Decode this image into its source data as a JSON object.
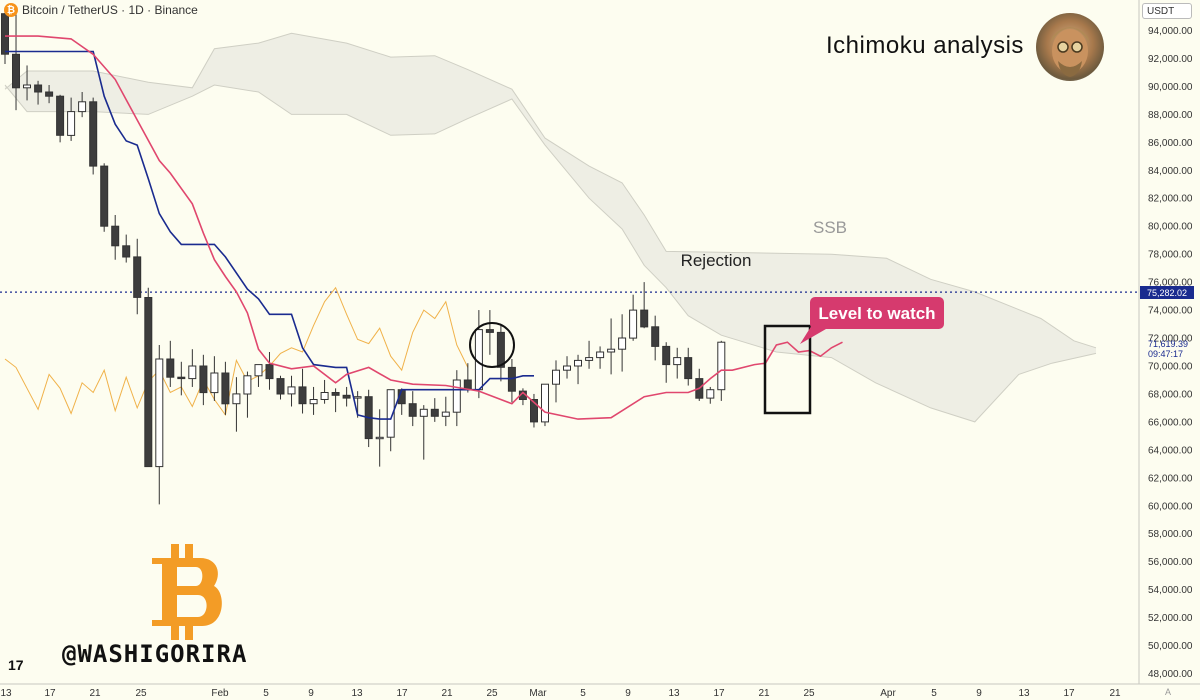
{
  "header": {
    "symbol": "Bitcoin / TetherUS · 1D · Binance",
    "currency": "USDT",
    "title": "Ichimoku analysis",
    "watermark": "@WASHIGORIRA",
    "tv_logo": "17",
    "auto_label": "A"
  },
  "colors": {
    "background": "#fdfdf0",
    "candle_up": "#ffffff",
    "candle_down": "#3d3d3d",
    "tenkan": "#e0476e",
    "kijun": "#1a2b8f",
    "chikou": "#f0b24a",
    "cloud": "#eeeee4",
    "level_badge": "#d63a6e",
    "bitcoin": "#f39c26"
  },
  "chart_data": {
    "type": "candlestick",
    "indicator": "Ichimoku",
    "y_axis": {
      "min": 47000,
      "max": 95500,
      "ticks": [
        "94,000.00",
        "92,000.00",
        "90,000.00",
        "88,000.00",
        "86,000.00",
        "84,000.00",
        "82,000.00",
        "80,000.00",
        "78,000.00",
        "76,000.00",
        "74,000.00",
        "72,000.00",
        "70,000.00",
        "68,000.00",
        "66,000.00",
        "64,000.00",
        "62,000.00",
        "60,000.00",
        "58,000.00",
        "56,000.00",
        "54,000.00",
        "52,000.00",
        "50,000.00",
        "48,000.00"
      ],
      "tick_values": [
        94000,
        92000,
        90000,
        88000,
        86000,
        84000,
        82000,
        80000,
        78000,
        76000,
        74000,
        72000,
        70000,
        68000,
        66000,
        64000,
        62000,
        60000,
        58000,
        56000,
        54000,
        52000,
        50000,
        48000
      ]
    },
    "x_axis": {
      "labels": [
        "13",
        "17",
        "21",
        "25",
        "Feb",
        "5",
        "9",
        "13",
        "17",
        "21",
        "25",
        "Mar",
        "5",
        "9",
        "13",
        "17",
        "21",
        "25",
        "Apr",
        "5",
        "9",
        "13",
        "17",
        "21"
      ]
    },
    "price_labels": {
      "level": "75,282.02",
      "last": "71,619.39",
      "countdown": "09:47:17"
    },
    "level_line": 75282,
    "candles": [
      [
        95200,
        95600,
        91600,
        92300
      ],
      [
        92300,
        95400,
        88300,
        89900
      ],
      [
        89900,
        91500,
        89000,
        90100
      ],
      [
        90100,
        90400,
        88700,
        89600
      ],
      [
        89600,
        90100,
        88800,
        89300
      ],
      [
        89300,
        89400,
        86000,
        86500
      ],
      [
        86500,
        89200,
        86100,
        88200
      ],
      [
        88200,
        89600,
        87800,
        88900
      ],
      [
        88900,
        89200,
        83700,
        84300
      ],
      [
        84300,
        84500,
        79600,
        80000
      ],
      [
        80000,
        80800,
        77600,
        78600
      ],
      [
        78600,
        79400,
        77400,
        77800
      ],
      [
        77800,
        79100,
        73700,
        74900
      ],
      [
        74900,
        75600,
        63000,
        62800
      ],
      [
        62800,
        71500,
        60100,
        70500
      ],
      [
        70500,
        71800,
        68500,
        69200
      ],
      [
        69200,
        70300,
        67900,
        69100
      ],
      [
        69100,
        71200,
        68500,
        70000
      ],
      [
        70000,
        70800,
        67200,
        68100
      ],
      [
        68100,
        70700,
        67500,
        69500
      ],
      [
        69500,
        70300,
        66500,
        67300
      ],
      [
        67300,
        69200,
        65300,
        68000
      ],
      [
        68000,
        69600,
        66300,
        69300
      ],
      [
        69300,
        70100,
        68500,
        70100
      ],
      [
        70100,
        71000,
        68300,
        69100
      ],
      [
        69100,
        69300,
        67600,
        68000
      ],
      [
        68000,
        69300,
        67100,
        68500
      ],
      [
        68500,
        69800,
        66600,
        67300
      ],
      [
        67300,
        68500,
        66500,
        67600
      ],
      [
        67600,
        69000,
        67300,
        68100
      ],
      [
        68100,
        68400,
        66700,
        67900
      ],
      [
        67900,
        68500,
        67100,
        67700
      ],
      [
        67700,
        68200,
        66300,
        67800
      ],
      [
        67800,
        68300,
        64200,
        64800
      ],
      [
        64800,
        66900,
        62800,
        64900
      ],
      [
        64900,
        68300,
        63900,
        68300
      ],
      [
        68300,
        68400,
        66500,
        67300
      ],
      [
        67300,
        68200,
        65700,
        66400
      ],
      [
        66400,
        67200,
        63300,
        66900
      ],
      [
        66900,
        67700,
        66000,
        66400
      ],
      [
        66400,
        67800,
        65700,
        66700
      ],
      [
        66700,
        69700,
        65700,
        69000
      ],
      [
        69000,
        70200,
        68100,
        68300
      ],
      [
        68300,
        74000,
        67700,
        72600
      ],
      [
        72600,
        74000,
        70800,
        72400
      ],
      [
        72400,
        72900,
        68900,
        69900
      ],
      [
        69900,
        70500,
        67400,
        68200
      ],
      [
        68200,
        68400,
        67200,
        67600
      ],
      [
        67600,
        68000,
        65600,
        66000
      ],
      [
        66000,
        68600,
        65700,
        68700
      ],
      [
        68700,
        70400,
        67400,
        69700
      ],
      [
        69700,
        70700,
        69100,
        70000
      ],
      [
        70000,
        70800,
        68700,
        70400
      ],
      [
        70400,
        71800,
        69800,
        70600
      ],
      [
        70600,
        71400,
        69800,
        71000
      ],
      [
        71000,
        73400,
        69400,
        71200
      ],
      [
        71200,
        73700,
        69600,
        72000
      ],
      [
        72000,
        75100,
        71800,
        74000
      ],
      [
        74000,
        76000,
        72700,
        72800
      ],
      [
        72800,
        73600,
        70400,
        71400
      ],
      [
        71400,
        71700,
        68800,
        70100
      ],
      [
        70100,
        71300,
        69100,
        70600
      ],
      [
        70600,
        71300,
        68600,
        69100
      ],
      [
        69100,
        69800,
        67500,
        67700
      ],
      [
        67700,
        68500,
        67300,
        68300
      ],
      [
        68300,
        71800,
        67500,
        71700
      ]
    ],
    "tenkan": [
      [
        0,
        93600
      ],
      [
        3,
        93600
      ],
      [
        6,
        93400
      ],
      [
        8,
        92300
      ],
      [
        10,
        90500
      ],
      [
        12,
        87600
      ],
      [
        14,
        84700
      ],
      [
        15,
        83800
      ],
      [
        17,
        81600
      ],
      [
        18,
        79500
      ],
      [
        19,
        77600
      ],
      [
        20,
        76400
      ],
      [
        21,
        75300
      ],
      [
        22,
        73800
      ],
      [
        23,
        71200
      ],
      [
        24,
        70200
      ],
      [
        26,
        69800
      ],
      [
        28,
        70000
      ],
      [
        30,
        68800
      ],
      [
        31,
        69400
      ],
      [
        33,
        69900
      ],
      [
        35,
        69000
      ],
      [
        37,
        68700
      ],
      [
        40,
        68600
      ],
      [
        43,
        68200
      ],
      [
        46,
        67300
      ],
      [
        47,
        68100
      ],
      [
        49,
        66700
      ],
      [
        52,
        66200
      ],
      [
        55,
        66300
      ],
      [
        58,
        67800
      ],
      [
        60,
        68100
      ],
      [
        62,
        68100
      ],
      [
        63,
        68400
      ],
      [
        64,
        69100
      ],
      [
        65,
        69700
      ],
      [
        66,
        69700
      ],
      [
        68,
        70100
      ],
      [
        69,
        70200
      ],
      [
        70,
        71500
      ],
      [
        71,
        71700
      ],
      [
        72,
        71000
      ],
      [
        73,
        71100
      ],
      [
        74,
        70700
      ],
      [
        75,
        71300
      ],
      [
        76,
        71700
      ]
    ],
    "kijun": [
      [
        0,
        92500
      ],
      [
        8,
        92500
      ],
      [
        9,
        89300
      ],
      [
        10,
        87300
      ],
      [
        11,
        86100
      ],
      [
        12,
        85800
      ],
      [
        13,
        83400
      ],
      [
        14,
        80900
      ],
      [
        15,
        79600
      ],
      [
        16,
        78700
      ],
      [
        19,
        78700
      ],
      [
        20,
        77800
      ],
      [
        22,
        75500
      ],
      [
        23,
        74800
      ],
      [
        24,
        73700
      ],
      [
        26,
        73700
      ],
      [
        27,
        71300
      ],
      [
        28,
        70100
      ],
      [
        30,
        69900
      ],
      [
        31,
        69900
      ],
      [
        32,
        66500
      ],
      [
        33,
        66300
      ],
      [
        34,
        66200
      ],
      [
        35,
        66200
      ],
      [
        36,
        68300
      ],
      [
        42,
        68300
      ],
      [
        43,
        68300
      ],
      [
        44,
        69100
      ],
      [
        46,
        69100
      ],
      [
        47,
        69300
      ],
      [
        48,
        69300
      ]
    ],
    "chikou": [
      [
        0,
        70500
      ],
      [
        1,
        69900
      ],
      [
        2,
        68400
      ],
      [
        3,
        66900
      ],
      [
        4,
        69400
      ],
      [
        5,
        68400
      ],
      [
        6,
        66600
      ],
      [
        7,
        68800
      ],
      [
        8,
        68100
      ],
      [
        9,
        69700
      ],
      [
        10,
        66800
      ],
      [
        11,
        69200
      ],
      [
        12,
        67000
      ],
      [
        13,
        68900
      ],
      [
        14,
        69700
      ],
      [
        15,
        68100
      ],
      [
        16,
        68500
      ],
      [
        17,
        67100
      ],
      [
        18,
        69000
      ],
      [
        19,
        67600
      ],
      [
        20,
        66500
      ],
      [
        21,
        70400
      ],
      [
        22,
        68900
      ],
      [
        23,
        69300
      ],
      [
        24,
        70000
      ],
      [
        25,
        70900
      ],
      [
        26,
        71300
      ],
      [
        27,
        71000
      ],
      [
        28,
        72900
      ],
      [
        29,
        74600
      ],
      [
        30,
        75600
      ],
      [
        31,
        73700
      ],
      [
        32,
        71900
      ],
      [
        33,
        71600
      ],
      [
        34,
        72700
      ],
      [
        35,
        70700
      ],
      [
        36,
        69700
      ],
      [
        37,
        72400
      ],
      [
        38,
        74000
      ],
      [
        39,
        73400
      ],
      [
        40,
        74600
      ],
      [
        41,
        71500
      ],
      [
        42,
        69900
      ]
    ],
    "cloud": {
      "upper": [
        [
          0,
          89800
        ],
        [
          2,
          91100
        ],
        [
          6,
          91100
        ],
        [
          8,
          91100
        ],
        [
          13,
          90300
        ],
        [
          17,
          89900
        ],
        [
          19,
          92700
        ],
        [
          23,
          93100
        ],
        [
          26,
          93800
        ],
        [
          31,
          93100
        ],
        [
          35,
          92100
        ],
        [
          39,
          92200
        ],
        [
          42,
          91200
        ],
        [
          46,
          89800
        ],
        [
          49,
          86300
        ],
        [
          53,
          84300
        ],
        [
          56,
          83100
        ],
        [
          58,
          80800
        ],
        [
          60,
          78200
        ],
        [
          75,
          78000
        ],
        [
          80,
          77700
        ],
        [
          84,
          76200
        ],
        [
          88,
          75300
        ],
        [
          94,
          73400
        ],
        [
          97,
          71800
        ],
        [
          99,
          71300
        ]
      ],
      "lower": [
        [
          0,
          90100
        ],
        [
          2,
          88200
        ],
        [
          6,
          88200
        ],
        [
          8,
          88200
        ],
        [
          13,
          88000
        ],
        [
          17,
          89300
        ],
        [
          19,
          90100
        ],
        [
          23,
          89600
        ],
        [
          26,
          88000
        ],
        [
          31,
          88000
        ],
        [
          35,
          86500
        ],
        [
          39,
          86600
        ],
        [
          42,
          87700
        ],
        [
          46,
          89100
        ],
        [
          49,
          85800
        ],
        [
          53,
          82000
        ],
        [
          56,
          79800
        ],
        [
          58,
          77200
        ],
        [
          60,
          75600
        ],
        [
          62,
          73600
        ],
        [
          65,
          72200
        ],
        [
          70,
          71000
        ],
        [
          75,
          70600
        ],
        [
          79,
          68800
        ],
        [
          84,
          67000
        ],
        [
          88,
          66000
        ],
        [
          92,
          69400
        ],
        [
          95,
          70200
        ],
        [
          99,
          70900
        ]
      ]
    },
    "annotations": {
      "rejection": "Rejection",
      "ssb": "SSB",
      "level_to_watch": "Level to watch"
    }
  }
}
